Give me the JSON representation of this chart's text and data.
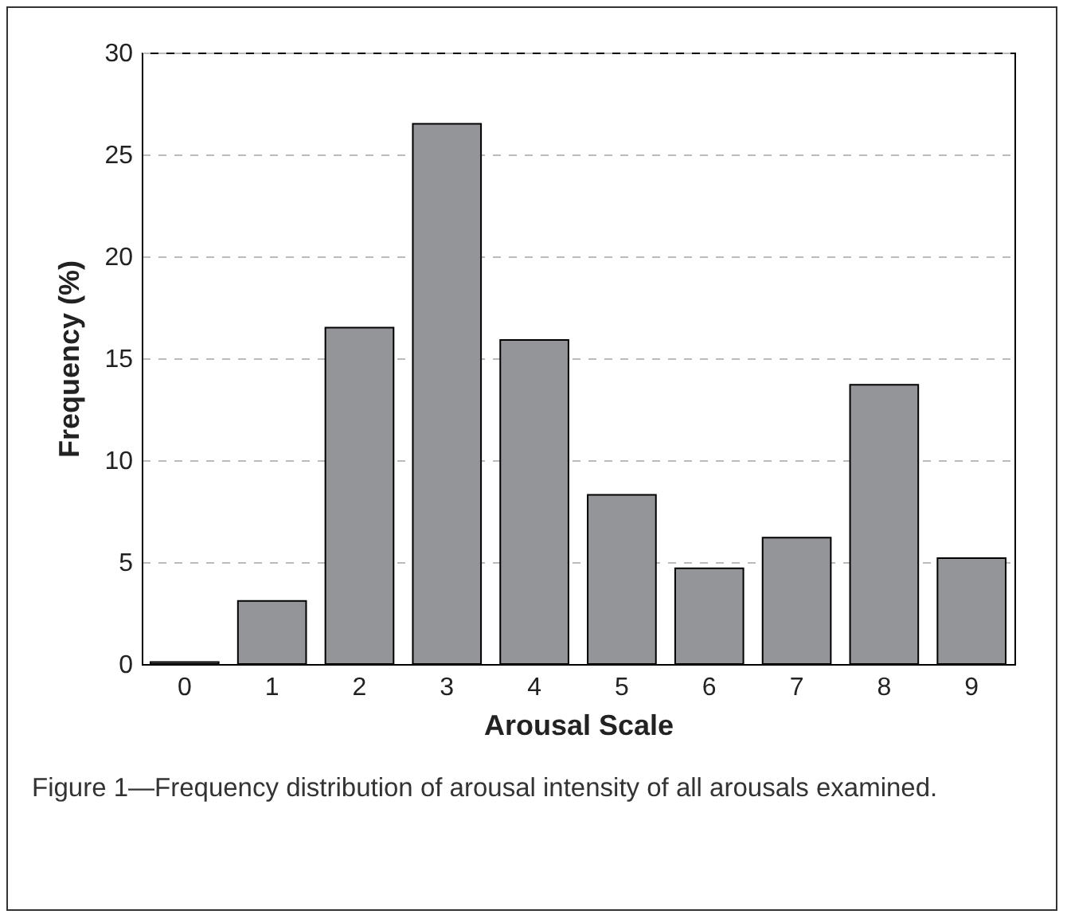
{
  "chart_data": {
    "type": "bar",
    "xlabel": "Arousal Scale",
    "ylabel": "Frequency (%)",
    "categories": [
      "0",
      "1",
      "2",
      "3",
      "4",
      "5",
      "6",
      "7",
      "8",
      "9"
    ],
    "values": [
      0.1,
      3.1,
      16.5,
      26.5,
      15.9,
      8.3,
      4.7,
      6.2,
      13.7,
      5.2
    ],
    "color": "#939598",
    "ylim": [
      0,
      30
    ],
    "yticks": [
      0,
      5,
      10,
      15,
      20,
      25,
      30
    ],
    "grid": "y",
    "annotations": [
      "Figure 1—Frequency distribution of arousal intensity of all arousals examined."
    ]
  }
}
